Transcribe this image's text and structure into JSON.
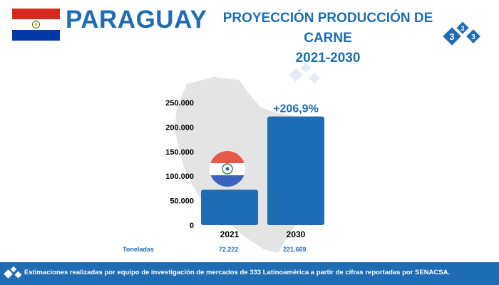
{
  "header": {
    "country": "PARAGUAY",
    "title_line1": "PROYECCIÓN PRODUCCIÓN DE CARNE",
    "title_line2": "2021-2030"
  },
  "logo": {
    "digits": [
      "3",
      "3",
      "3"
    ]
  },
  "chart_data": {
    "type": "bar",
    "categories": [
      "2021",
      "2030"
    ],
    "values": [
      72222,
      221669
    ],
    "ylim": [
      0,
      250000
    ],
    "yticks": [
      0,
      50000,
      100000,
      150000,
      200000,
      250000
    ],
    "ytick_labels": [
      "0",
      "50.000",
      "100.000",
      "150.000",
      "200.000",
      "250.000"
    ],
    "annotation": "+206,9%",
    "unit_label": "Toneladas",
    "value_labels": [
      "72.222",
      "221.669"
    ],
    "bar_color": "#1e6db4"
  },
  "footer": {
    "text": "Estimaciones realizadas por equipo de investigación de mercados de 333 Latinoamérica a partir de cifras reportadas por SENACSA."
  },
  "colors": {
    "brand": "#1e6db4",
    "flag_red": "#d52b1e",
    "flag_blue": "#0038a8"
  }
}
